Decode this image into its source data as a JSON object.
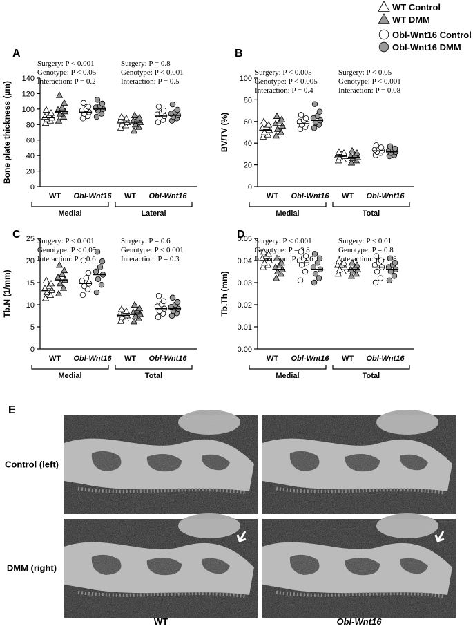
{
  "legend": [
    {
      "name": "WT Control",
      "marker": "triangle",
      "color": "#ffffff"
    },
    {
      "name": "WT DMM",
      "marker": "triangle",
      "color": "#999999"
    },
    {
      "name": "Obl-Wnt16 Control",
      "marker": "circle",
      "color": "#ffffff"
    },
    {
      "name": "Obl-Wnt16 DMM",
      "marker": "circle",
      "color": "#999999"
    }
  ],
  "chart_data": [
    {
      "type": "scatter",
      "label": "A",
      "ylabel": "Bone plate thickness (µm)",
      "annotations": [
        [
          "Surgery: P < 0.001",
          "Genotype: P < 0.05",
          "Interaction: P = 0.2"
        ],
        [
          "Surgery: P = 0.8",
          "Genotype: P < 0.001",
          "Interaction: P = 0.5"
        ]
      ],
      "groups": [
        "WT",
        "Obl-Wnt16",
        "WT",
        "Obl-Wnt16"
      ],
      "regions": [
        "Medial",
        "Lateral"
      ],
      "ylim": [
        0,
        140
      ],
      "yticks": [
        0,
        20,
        40,
        60,
        80,
        100,
        120,
        140
      ],
      "series": [
        {
          "values": [
            [
              82,
              85,
              87,
              89,
              90,
              92,
              95,
              99
            ],
            [
              76,
              79,
              81,
              83,
              85,
              86,
              88,
              90
            ]
          ],
          "means": [
            89,
            83
          ]
        },
        {
          "values": [
            [
              85,
              90,
              94,
              97,
              99,
              102,
              108,
              118
            ],
            [
              72,
              77,
              80,
              83,
              85,
              87,
              89,
              92
            ]
          ],
          "means": [
            97,
            83
          ]
        },
        {
          "values": [
            [
              88,
              91,
              94,
              96,
              98,
              100,
              103,
              108
            ],
            [
              83,
              86,
              89,
              91,
              93,
              95,
              98,
              103
            ]
          ],
          "means": [
            96,
            91
          ]
        },
        {
          "values": [
            [
              90,
              94,
              98,
              100,
              102,
              104,
              107,
              112
            ],
            [
              85,
              88,
              90,
              92,
              94,
              96,
              99,
              106
            ]
          ],
          "means": [
            100,
            92
          ]
        }
      ]
    },
    {
      "type": "scatter",
      "label": "B",
      "ylabel": "BV/TV (%)",
      "annotations": [
        [
          "Surgery: P < 0.005",
          "Genotype: P < 0.005",
          "Interaction: P = 0.4"
        ],
        [
          "Surgery: P < 0.05",
          "Genotype: P < 0.001",
          "Interaction: P = 0.08"
        ]
      ],
      "groups": [
        "WT",
        "Obl-Wnt16",
        "WT",
        "Obl-Wnt16"
      ],
      "regions": [
        "Medial",
        "Total"
      ],
      "ylim": [
        0,
        100
      ],
      "yticks": [
        0,
        20,
        40,
        60,
        80,
        100
      ],
      "series": [
        {
          "values": [
            [
              46,
              48,
              50,
              52,
              54,
              55,
              57,
              60
            ],
            [
              24,
              25,
              27,
              28,
              29,
              30,
              31,
              32
            ]
          ],
          "means": [
            52,
            28
          ]
        },
        {
          "values": [
            [
              47,
              50,
              53,
              56,
              58,
              60,
              62,
              65
            ],
            [
              22,
              24,
              26,
              27,
              28,
              29,
              31,
              33
            ]
          ],
          "means": [
            56,
            27
          ]
        },
        {
          "values": [
            [
              53,
              55,
              57,
              58,
              60,
              61,
              63,
              66
            ],
            [
              29,
              31,
              32,
              33,
              34,
              35,
              36,
              38
            ]
          ],
          "means": [
            58,
            33
          ]
        },
        {
          "values": [
            [
              54,
              57,
              59,
              61,
              63,
              65,
              69,
              76
            ],
            [
              28,
              29,
              31,
              32,
              33,
              34,
              35,
              37
            ]
          ],
          "means": [
            61,
            32
          ]
        }
      ]
    },
    {
      "type": "scatter",
      "label": "C",
      "ylabel": "Tb.N (1/mm)",
      "annotations": [
        [
          "Surgery: P < 0.001",
          "Genotype: P < 0.05",
          "Interaction: P = 0.6"
        ],
        [
          "Surgery: P = 0.6",
          "Genotype: P < 0.001",
          "Interaction: P = 0.3"
        ]
      ],
      "groups": [
        "WT",
        "Obl-Wnt16",
        "WT",
        "Obl-Wnt16"
      ],
      "regions": [
        "Medial",
        "Total"
      ],
      "ylim": [
        0,
        25
      ],
      "yticks": [
        0,
        5,
        10,
        15,
        20,
        25
      ],
      "series": [
        {
          "values": [
            [
              11.5,
              12.2,
              12.8,
              13.3,
              13.7,
              14.2,
              14.8,
              15.5
            ],
            [
              6.3,
              6.9,
              7.3,
              7.6,
              7.9,
              8.2,
              8.6,
              9
            ]
          ],
          "means": [
            13.3,
            7.6
          ]
        },
        {
          "values": [
            [
              12.5,
              13.8,
              14.8,
              15.6,
              16.2,
              16.9,
              17.8,
              19
            ],
            [
              6.2,
              6.9,
              7.4,
              7.9,
              8.3,
              8.7,
              9.2,
              10
            ]
          ],
          "means": [
            15.6,
            7.9
          ]
        },
        {
          "values": [
            [
              12.2,
              13.5,
              14.2,
              14.8,
              15.4,
              16,
              17.2,
              20
            ],
            [
              7.2,
              8,
              8.6,
              9.1,
              9.6,
              10.1,
              10.8,
              12
            ]
          ],
          "means": [
            14.8,
            9.1
          ]
        },
        {
          "values": [
            [
              12.8,
              14.5,
              15.8,
              16.8,
              17.5,
              18.5,
              19.8,
              22
            ],
            [
              7.5,
              8.1,
              8.6,
              9.1,
              9.5,
              10,
              10.6,
              11.6
            ]
          ],
          "means": [
            16.8,
            9.1
          ]
        }
      ]
    },
    {
      "type": "scatter",
      "label": "D",
      "ylabel": "Tb.Th (mm)",
      "annotations": [
        [
          "Surgery: P < 0.001",
          "Genotype: P = 0.8",
          "Interaction: P = 0.6"
        ],
        [
          "Surgery: P < 0.01",
          "Genotype: P = 0.8",
          "Interaction: P = 0.8"
        ]
      ],
      "groups": [
        "WT",
        "Obl-Wnt16",
        "WT",
        "Obl-Wnt16"
      ],
      "regions": [
        "Medial",
        "Total"
      ],
      "ylim": [
        0,
        0.05
      ],
      "yticks": [
        {
          "value": 0,
          "label": "0.00"
        },
        {
          "value": 0.01,
          "label": "0.01"
        },
        {
          "value": 0.02,
          "label": "0.02"
        },
        {
          "value": 0.03,
          "label": "0.03"
        },
        {
          "value": 0.04,
          "label": "0.04"
        },
        {
          "value": 0.05,
          "label": "0.05"
        }
      ],
      "series": [
        {
          "values": [
            [
              0.037,
              0.038,
              0.039,
              0.04,
              0.041,
              0.042,
              0.043,
              0.044
            ],
            [
              0.034,
              0.035,
              0.036,
              0.037,
              0.038,
              0.038,
              0.039,
              0.04
            ]
          ],
          "means": [
            0.04,
            0.037
          ]
        },
        {
          "values": [
            [
              0.032,
              0.034,
              0.035,
              0.036,
              0.037,
              0.038,
              0.039,
              0.041
            ],
            [
              0.033,
              0.034,
              0.035,
              0.036,
              0.036,
              0.037,
              0.038,
              0.039
            ]
          ],
          "means": [
            0.036,
            0.036
          ]
        },
        {
          "values": [
            [
              0.031,
              0.035,
              0.038,
              0.039,
              0.04,
              0.041,
              0.042,
              0.044
            ],
            [
              0.03,
              0.032,
              0.035,
              0.037,
              0.038,
              0.039,
              0.04,
              0.042
            ]
          ],
          "means": [
            0.039,
            0.037
          ]
        },
        {
          "values": [
            [
              0.03,
              0.032,
              0.034,
              0.036,
              0.037,
              0.039,
              0.041,
              0.043
            ],
            [
              0.031,
              0.033,
              0.035,
              0.036,
              0.037,
              0.038,
              0.039,
              0.041
            ]
          ],
          "means": [
            0.036,
            0.036
          ]
        }
      ]
    }
  ],
  "images": {
    "label": "E",
    "rows": [
      "Control (left)",
      "DMM (right)"
    ],
    "cols": [
      "WT",
      "Obl-Wnt16"
    ]
  }
}
